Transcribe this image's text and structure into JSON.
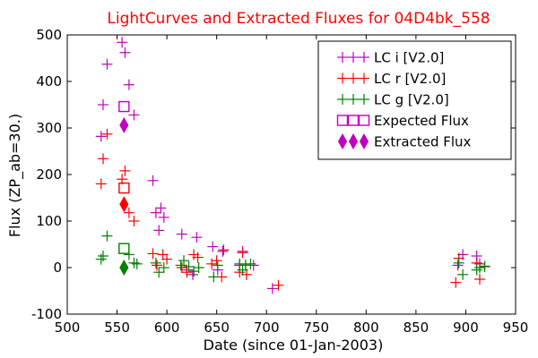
{
  "chart_data": {
    "type": "scatter",
    "title": "LightCurves and Extracted Fluxes for 04D4bk_558",
    "xlabel": "Date (since 01-Jan-2003)",
    "ylabel": "Flux (ZP_ab=30.)",
    "xlim": [
      500,
      950
    ],
    "ylim": [
      -100,
      500
    ],
    "xticks": [
      500,
      550,
      600,
      650,
      700,
      750,
      800,
      850,
      900,
      950
    ],
    "yticks": [
      -100,
      0,
      100,
      200,
      300,
      400,
      500
    ],
    "xtick_labels": [
      "500",
      "550",
      "600",
      "650",
      "700",
      "750",
      "800",
      "850",
      "900",
      "950"
    ],
    "ytick_labels": [
      "-100",
      "0",
      "100",
      "200",
      "300",
      "400",
      "500"
    ],
    "grid": false,
    "legend_position": "top-right",
    "series": [
      {
        "name": "LC i [V2.0]",
        "marker": "plus",
        "color": "#c000c0",
        "points": [
          [
            534,
            282
          ],
          [
            536,
            350
          ],
          [
            540,
            437
          ],
          [
            555,
            484
          ],
          [
            558,
            462
          ],
          [
            562,
            393
          ],
          [
            567,
            328
          ],
          [
            586,
            187
          ],
          [
            589,
            118
          ],
          [
            592,
            80
          ],
          [
            594,
            128
          ],
          [
            597,
            108
          ],
          [
            615,
            72
          ],
          [
            620,
            -5
          ],
          [
            626,
            -15
          ],
          [
            630,
            65
          ],
          [
            646,
            45
          ],
          [
            651,
            -5
          ],
          [
            656,
            35
          ],
          [
            673,
            5
          ],
          [
            676,
            35
          ],
          [
            679,
            5
          ],
          [
            687,
            5
          ],
          [
            706,
            -45
          ],
          [
            892,
            5
          ],
          [
            897,
            28
          ],
          [
            911,
            25
          ],
          [
            914,
            8
          ]
        ]
      },
      {
        "name": "LC r [V2.0]",
        "marker": "plus",
        "color": "#ff0000",
        "points": [
          [
            534,
            180
          ],
          [
            536,
            234
          ],
          [
            540,
            287
          ],
          [
            555,
            190
          ],
          [
            558,
            208
          ],
          [
            562,
            118
          ],
          [
            567,
            100
          ],
          [
            586,
            30
          ],
          [
            590,
            5
          ],
          [
            596,
            28
          ],
          [
            600,
            18
          ],
          [
            615,
            0
          ],
          [
            620,
            -10
          ],
          [
            627,
            28
          ],
          [
            631,
            22
          ],
          [
            645,
            8
          ],
          [
            650,
            15
          ],
          [
            655,
            -20
          ],
          [
            657,
            38
          ],
          [
            673,
            -10
          ],
          [
            676,
            32
          ],
          [
            680,
            -15
          ],
          [
            712,
            -38
          ],
          [
            890,
            -32
          ],
          [
            893,
            20
          ],
          [
            911,
            10
          ],
          [
            914,
            -25
          ],
          [
            919,
            2
          ]
        ]
      },
      {
        "name": "LC g [V2.0]",
        "marker": "plus",
        "color": "#008000",
        "points": [
          [
            534,
            18
          ],
          [
            536,
            25
          ],
          [
            540,
            68
          ],
          [
            562,
            28
          ],
          [
            567,
            10
          ],
          [
            570,
            8
          ],
          [
            589,
            10
          ],
          [
            592,
            -10
          ],
          [
            597,
            0
          ],
          [
            614,
            5
          ],
          [
            617,
            15
          ],
          [
            622,
            2
          ],
          [
            627,
            -8
          ],
          [
            632,
            0
          ],
          [
            647,
            -20
          ],
          [
            651,
            5
          ],
          [
            673,
            8
          ],
          [
            676,
            -5
          ],
          [
            679,
            5
          ],
          [
            684,
            8
          ],
          [
            893,
            10
          ],
          [
            897,
            -15
          ],
          [
            911,
            -5
          ],
          [
            914,
            0
          ],
          [
            919,
            3
          ]
        ]
      },
      {
        "name": "Expected Flux",
        "marker": "square",
        "points": [
          [
            557,
            346
          ],
          [
            557,
            171
          ],
          [
            557,
            41
          ]
        ],
        "colors": [
          "#c000c0",
          "#ff0000",
          "#008000"
        ]
      },
      {
        "name": "Extracted Flux",
        "marker": "diamond",
        "points": [
          [
            557,
            306
          ],
          [
            557,
            136
          ],
          [
            557,
            0
          ]
        ],
        "colors": [
          "#c000c0",
          "#ff0000",
          "#008000"
        ]
      }
    ],
    "legend_items": [
      {
        "label": "LC i [V2.0]",
        "marker": "plus",
        "color": "#c000c0"
      },
      {
        "label": "LC r [V2.0]",
        "marker": "plus",
        "color": "#ff0000"
      },
      {
        "label": "LC g [V2.0]",
        "marker": "plus",
        "color": "#008000"
      },
      {
        "label": "Expected Flux",
        "marker": "square",
        "color": "#c000c0"
      },
      {
        "label": "Extracted Flux",
        "marker": "diamond",
        "color": "#c000c0"
      }
    ]
  }
}
